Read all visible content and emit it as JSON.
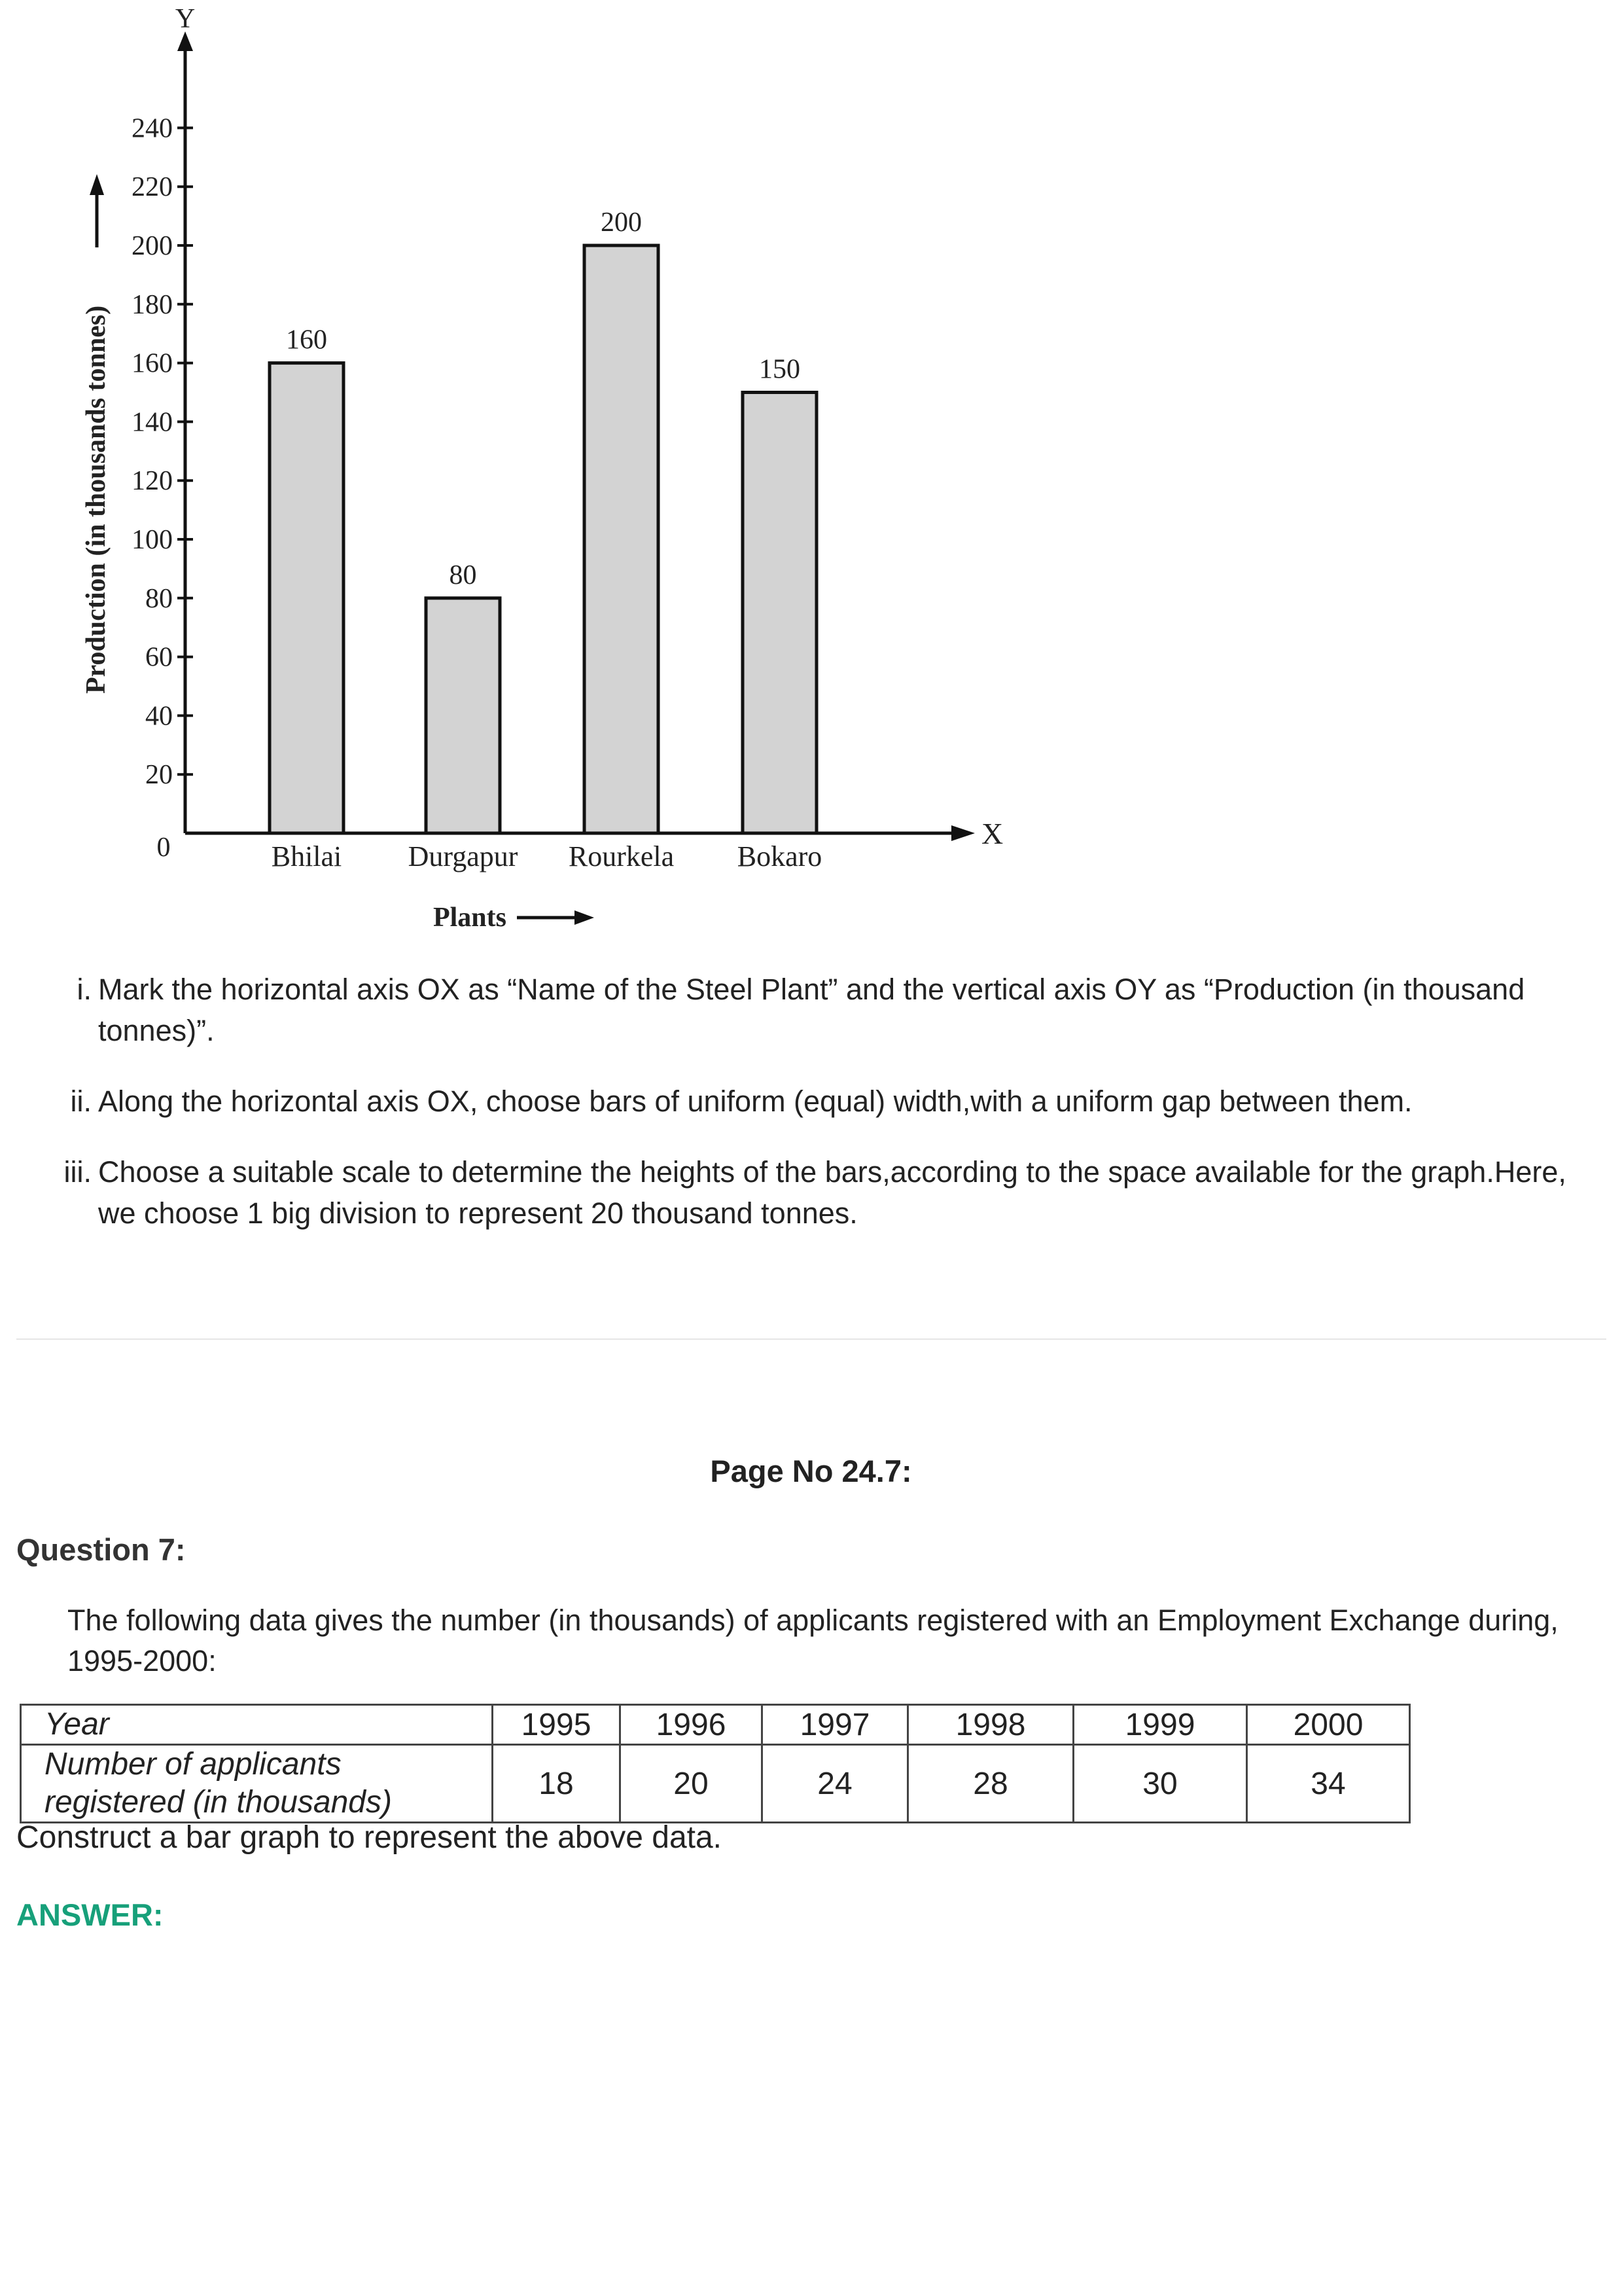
{
  "chart_data": {
    "type": "bar",
    "categories": [
      "Bhilai",
      "Durgapur",
      "Rourkela",
      "Bokaro"
    ],
    "values": [
      160,
      80,
      200,
      150
    ],
    "data_labels": [
      "160",
      "80",
      "200",
      "150"
    ],
    "xlabel": "Plants",
    "ylabel": "Production (in thousands tonnes)",
    "x_axis_letter": "X",
    "y_axis_letter": "Y",
    "origin_label": "0",
    "yticks": [
      20,
      40,
      60,
      80,
      100,
      120,
      140,
      160,
      180,
      200,
      220,
      240
    ],
    "ylim": [
      0,
      240
    ],
    "bar_color": "#d3d3d3",
    "grid": false,
    "legend": "none"
  },
  "steps": [
    {
      "num": "i.",
      "text": "Mark the horizontal axis OX as “Name of the Steel Plant” and the vertical axis OY as “Production (in thousand tonnes)”."
    },
    {
      "num": "ii.",
      "text": "Along the horizontal axis OX, choose  bars of uniform (equal) width,with a uniform gap between them."
    },
    {
      "num": "iii.",
      "text": "Choose a suitable scale to determine the heights of the bars,according to the space available for the graph.Here, we choose 1 big division to represent 20 thousand tonnes."
    }
  ],
  "page_number": "Page No 24.7:",
  "question": {
    "title": "Question 7:",
    "intro": "The following data gives the number (in thousands) of applicants registered with an Employment Exchange during, 1995-2000:",
    "table": {
      "row1_header": "Year",
      "row2_header_line1": "Number of applicants",
      "row2_header_line2": "registered (in thousands)",
      "years": [
        "1995",
        "1996",
        "1997",
        "1998",
        "1999",
        "2000"
      ],
      "applicants": [
        "18",
        "20",
        "24",
        "28",
        "30",
        "34"
      ]
    },
    "instruction": "Construct a bar graph to represent the above data."
  },
  "answer_label": "ANSWER:",
  "colors": {
    "answer": "#17a07a",
    "text": "#222222"
  }
}
